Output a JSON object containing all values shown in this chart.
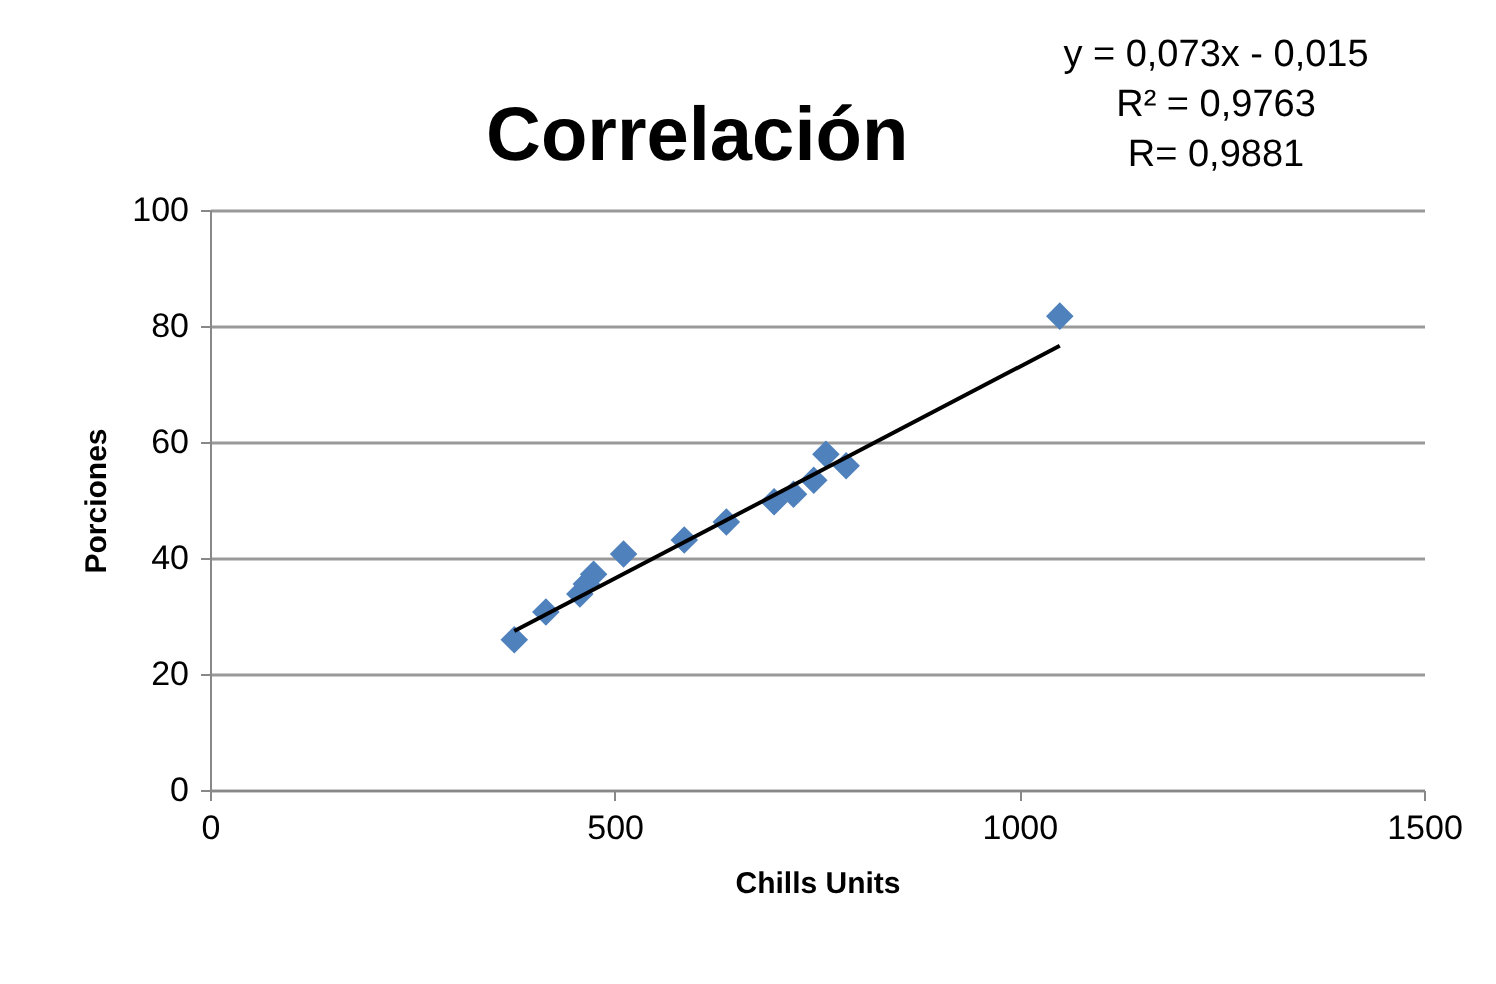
{
  "chart_data": {
    "type": "scatter",
    "title": "Correlación",
    "xlabel": "Chills Units",
    "ylabel": "Porciones",
    "xlim": [
      0,
      1500
    ],
    "xticks": [
      0,
      500,
      1000,
      1500
    ],
    "ylim": [
      0,
      100
    ],
    "yticks": [
      0,
      20,
      40,
      60,
      80,
      100
    ],
    "grid": "y",
    "legend": false,
    "annotations": [
      "y = 0,073x - 0,015",
      "R² = 0,9763",
      "R= 0,9881"
    ],
    "series": [
      {
        "type": "scatter",
        "marker": "diamond",
        "color": "#4f81bd",
        "x": [
          376,
          415,
          457,
          465,
          474,
          511,
          586,
          638,
          697,
          721,
          746,
          761,
          786,
          1050
        ],
        "values": [
          25.9,
          30.7,
          33.8,
          35.5,
          37.2,
          40.7,
          43.1,
          46.2,
          49.7,
          51,
          53.4,
          57.9,
          55.9,
          81.7
        ]
      },
      {
        "type": "line",
        "marker": "none",
        "color": "#000000",
        "x": [
          376,
          1050
        ],
        "values": [
          27.4,
          76.6
        ]
      }
    ]
  }
}
